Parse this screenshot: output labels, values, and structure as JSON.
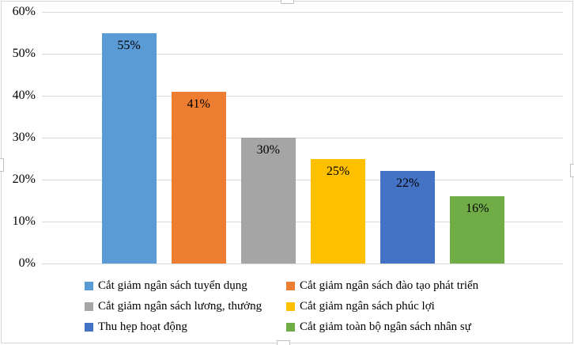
{
  "chart_data": {
    "type": "bar",
    "title": "",
    "xlabel": "",
    "ylabel": "",
    "categories": [
      "Cắt giảm ngân sách tuyển dụng",
      "Cắt giảm ngân sách đào tạo phát triển",
      "Cắt giảm ngân sách lương, thưởng",
      "Cắt giảm ngân sách phúc lợi",
      "Thu hẹp hoạt động",
      "Cắt giảm toàn bộ ngân sách nhân sự"
    ],
    "values": [
      55,
      41,
      30,
      25,
      22,
      16
    ],
    "value_labels": [
      "55%",
      "41%",
      "30%",
      "25%",
      "22%",
      "16%"
    ],
    "colors": [
      "#5B9BD5",
      "#ED7D31",
      "#A5A5A5",
      "#FFC000",
      "#4472C4",
      "#70AD47"
    ],
    "ylim": [
      0,
      60
    ],
    "ytick_step": 10,
    "yticks": [
      {
        "value": 0,
        "label": "0%"
      },
      {
        "value": 10,
        "label": "10%"
      },
      {
        "value": 20,
        "label": "20%"
      },
      {
        "value": 30,
        "label": "30%"
      },
      {
        "value": 40,
        "label": "40%"
      },
      {
        "value": 50,
        "label": "50%"
      },
      {
        "value": 60,
        "label": "60%"
      }
    ],
    "grid": true,
    "legend_position": "bottom",
    "data_label_color": "#000000",
    "gridline_color": "#d9d9d9"
  }
}
